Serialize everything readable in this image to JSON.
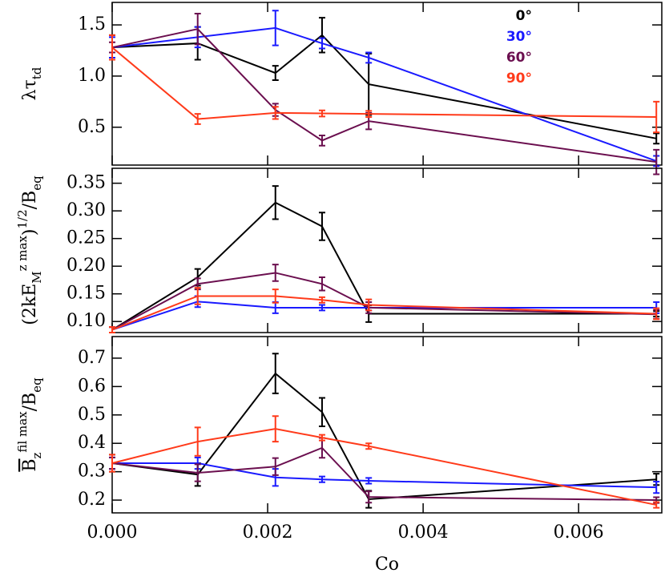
{
  "chart_data": [
    {
      "type": "line",
      "legend": "upper right",
      "ylabel": [
        {
          "text": "λτ"
        },
        {
          "text": "td",
          "shift": "sub"
        }
      ],
      "x": [
        0,
        0.0011,
        0.0021,
        0.0027,
        0.0033,
        0.007
      ],
      "xlim": [
        0,
        0.00707
      ],
      "xticks": [
        0,
        0.002,
        0.004,
        0.006
      ],
      "ylim": [
        0.13,
        1.72
      ],
      "yticks": [
        {
          "value": 0.5,
          "label": "0.5"
        },
        {
          "value": 1,
          "label": "1.0"
        },
        {
          "value": 1.5,
          "label": "1.5"
        }
      ],
      "series": [
        {
          "name": "0°",
          "color": "#000000",
          "values": [
            1.28,
            1.32,
            1.03,
            1.4,
            0.92,
            0.39
          ],
          "errors": [
            0.12,
            0.16,
            0.07,
            0.17,
            0.3,
            0.05
          ]
        },
        {
          "name": "30°",
          "color": "#1a1aff",
          "values": [
            1.28,
            1.38,
            1.47,
            1.32,
            1.18,
            0.17
          ],
          "errors": [
            0.1,
            0.1,
            0.17,
            0.05,
            0.05,
            0.05
          ]
        },
        {
          "name": "60°",
          "color": "#6b0f4f",
          "values": [
            1.28,
            1.46,
            0.67,
            0.37,
            0.56,
            0.16
          ],
          "errors": [
            0.05,
            0.15,
            0.06,
            0.05,
            0.08,
            0.12
          ]
        },
        {
          "name": "90°",
          "color": "#ff3a1a",
          "values": [
            1.28,
            0.58,
            0.64,
            0.635,
            0.63,
            0.6
          ],
          "errors": [
            0.12,
            0.05,
            0.06,
            0.03,
            0.03,
            0.15
          ]
        }
      ]
    },
    {
      "type": "line",
      "ylabel": [
        {
          "text": "(2kE"
        },
        {
          "text": "M",
          "shift": "sub"
        },
        {
          "text": "z max",
          "shift": "super"
        },
        {
          "text": ")"
        },
        {
          "text": "1/2",
          "shift": "super"
        },
        {
          "text": "/B"
        },
        {
          "text": "eq",
          "shift": "sub"
        }
      ],
      "x": [
        0,
        0.0011,
        0.0021,
        0.0027,
        0.0033,
        0.007
      ],
      "xlim": [
        0,
        0.00707
      ],
      "xticks": [
        0,
        0.002,
        0.004,
        0.006
      ],
      "ylim": [
        0.08,
        0.377
      ],
      "yticks": [
        {
          "value": 0.1,
          "label": "0.10"
        },
        0.15,
        {
          "value": 0.2,
          "label": "0.20"
        },
        0.25,
        {
          "value": 0.3,
          "label": "0.30"
        },
        0.35
      ],
      "series": [
        {
          "name": "0°",
          "color": "#000000",
          "values": [
            0.085,
            0.18,
            0.315,
            0.272,
            0.114,
            0.114
          ],
          "errors": [
            0.005,
            0.015,
            0.03,
            0.025,
            0.015,
            0.005
          ]
        },
        {
          "name": "30°",
          "color": "#1a1aff",
          "values": [
            0.085,
            0.136,
            0.125,
            0.125,
            0.125,
            0.125
          ],
          "errors": [
            0.005,
            0.01,
            0.01,
            0.005,
            0.005,
            0.01
          ]
        },
        {
          "name": "60°",
          "color": "#6b0f4f",
          "values": [
            0.085,
            0.168,
            0.188,
            0.168,
            0.125,
            0.113
          ],
          "errors": [
            0.005,
            0.01,
            0.015,
            0.012,
            0.01,
            0.008
          ]
        },
        {
          "name": "90°",
          "color": "#ff3a1a",
          "values": [
            0.085,
            0.146,
            0.146,
            0.139,
            0.13,
            0.114
          ],
          "errors": [
            0.005,
            0.015,
            0.012,
            0.005,
            0.01,
            0.01
          ]
        }
      ]
    },
    {
      "type": "line",
      "xlabel": "Co",
      "ylabel": [
        {
          "text": "B",
          "overline": true
        },
        {
          "text": "z",
          "shift": "sub"
        },
        {
          "text": "fil max",
          "shift": "super"
        },
        {
          "text": "/B"
        },
        {
          "text": "eq",
          "shift": "sub"
        }
      ],
      "x": [
        0,
        0.0011,
        0.0021,
        0.0027,
        0.0033,
        0.007
      ],
      "xlim": [
        0,
        0.00707
      ],
      "xticks": [
        {
          "value": 0,
          "label": "0.000"
        },
        {
          "value": 0.002,
          "label": "0.002"
        },
        {
          "value": 0.004,
          "label": "0.004"
        },
        {
          "value": 0.006,
          "label": "0.006"
        }
      ],
      "ylim": [
        0.155,
        0.776
      ],
      "yticks": [
        0.2,
        0.3,
        0.4,
        0.5,
        0.6,
        0.7
      ],
      "series": [
        {
          "name": "0°",
          "color": "#000000",
          "values": [
            0.33,
            0.29,
            0.646,
            0.51,
            0.203,
            0.273
          ],
          "errors": [
            0.03,
            0.04,
            0.07,
            0.05,
            0.03,
            0.02
          ]
        },
        {
          "name": "30°",
          "color": "#1a1aff",
          "values": [
            0.33,
            0.33,
            0.28,
            0.273,
            0.268,
            0.245
          ],
          "errors": [
            0.02,
            0.02,
            0.03,
            0.01,
            0.01,
            0.02
          ]
        },
        {
          "name": "60°",
          "color": "#6b0f4f",
          "values": [
            0.33,
            0.296,
            0.318,
            0.384,
            0.211,
            0.2
          ],
          "errors": [
            0.02,
            0.03,
            0.03,
            0.035,
            0.02,
            0.01
          ]
        },
        {
          "name": "90°",
          "color": "#ff3a1a",
          "values": [
            0.33,
            0.406,
            0.451,
            0.42,
            0.39,
            0.183
          ],
          "errors": [
            0.03,
            0.05,
            0.045,
            0.01,
            0.01,
            0.01
          ]
        }
      ]
    }
  ]
}
